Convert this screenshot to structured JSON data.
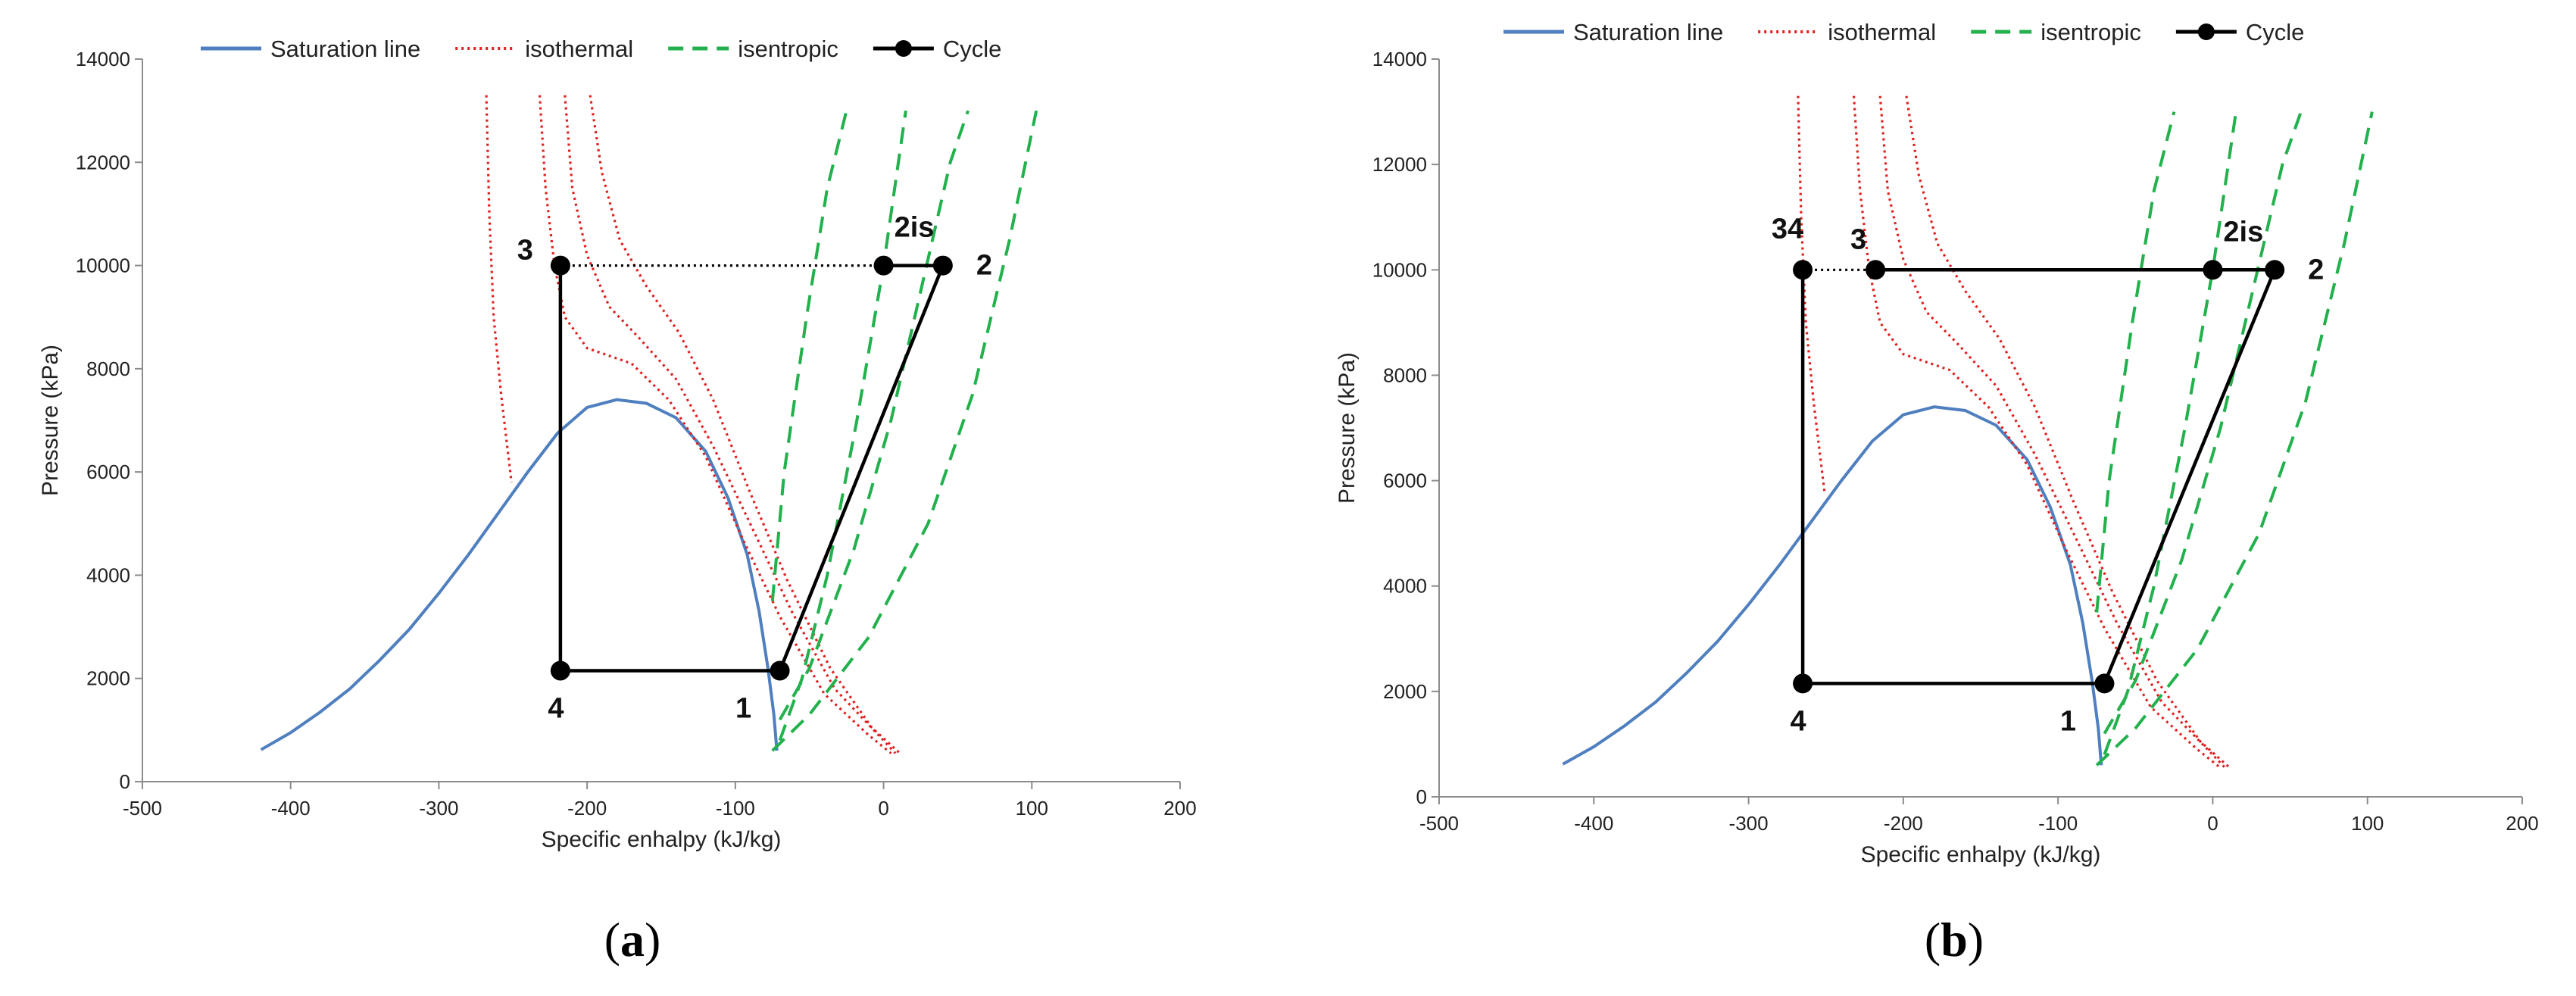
{
  "chart_data": [
    {
      "type": "line",
      "panel": "a",
      "caption_open": "(",
      "caption_letter": "a",
      "caption_close": ")",
      "xlabel": "Specific enhalpy (kJ/kg)",
      "ylabel": "Pressure (kPa)",
      "xlim": [
        -500,
        200
      ],
      "ylim": [
        0,
        14000
      ],
      "xticks": [
        -500,
        -400,
        -300,
        -200,
        -100,
        0,
        100,
        200
      ],
      "yticks": [
        0,
        2000,
        4000,
        6000,
        8000,
        10000,
        12000,
        14000
      ],
      "grid": false,
      "legend_position": "top",
      "legend": [
        {
          "name": "Saturation line",
          "style": "solid",
          "color": "#4f7fbf"
        },
        {
          "name": "isothermal",
          "style": "dotted",
          "color": "#e02020"
        },
        {
          "name": "isentropic",
          "style": "dashed",
          "color": "#22b14c"
        },
        {
          "name": "Cycle",
          "style": "marker",
          "color": "#000000"
        }
      ],
      "saturation": [
        [
          -420,
          620
        ],
        [
          -400,
          950
        ],
        [
          -380,
          1350
        ],
        [
          -360,
          1800
        ],
        [
          -340,
          2350
        ],
        [
          -320,
          2950
        ],
        [
          -300,
          3650
        ],
        [
          -280,
          4400
        ],
        [
          -260,
          5200
        ],
        [
          -240,
          6000
        ],
        [
          -220,
          6750
        ],
        [
          -200,
          7250
        ],
        [
          -180,
          7400
        ],
        [
          -160,
          7330
        ],
        [
          -140,
          7050
        ],
        [
          -120,
          6400
        ],
        [
          -105,
          5500
        ],
        [
          -92,
          4400
        ],
        [
          -84,
          3300
        ],
        [
          -78,
          2200
        ],
        [
          -74,
          1300
        ],
        [
          -72,
          600
        ]
      ],
      "isotherms": [
        [
          [
            -268,
            13300
          ],
          [
            -266,
            11000
          ],
          [
            -263,
            9000
          ],
          [
            -258,
            7500
          ],
          [
            -251,
            5800
          ]
        ],
        [
          [
            -232,
            13300
          ],
          [
            -228,
            11500
          ],
          [
            -222,
            10000
          ],
          [
            -215,
            9000
          ],
          [
            -200,
            8400
          ],
          [
            -170,
            8100
          ],
          [
            -145,
            7400
          ],
          [
            -120,
            6300
          ],
          [
            -95,
            4700
          ],
          [
            -70,
            3200
          ],
          [
            -40,
            1700
          ],
          [
            -10,
            900
          ],
          [
            5,
            550
          ]
        ],
        [
          [
            -215,
            13300
          ],
          [
            -210,
            11500
          ],
          [
            -200,
            10200
          ],
          [
            -185,
            9200
          ],
          [
            -165,
            8600
          ],
          [
            -140,
            7800
          ],
          [
            -115,
            6500
          ],
          [
            -90,
            5000
          ],
          [
            -62,
            3300
          ],
          [
            -33,
            1800
          ],
          [
            -5,
            950
          ],
          [
            8,
            550
          ]
        ],
        [
          [
            -198,
            13300
          ],
          [
            -190,
            11800
          ],
          [
            -178,
            10500
          ],
          [
            -160,
            9600
          ],
          [
            -138,
            8700
          ],
          [
            -115,
            7400
          ],
          [
            -90,
            5600
          ],
          [
            -65,
            3900
          ],
          [
            -36,
            2200
          ],
          [
            -8,
            1050
          ],
          [
            11,
            550
          ]
        ]
      ],
      "isentropes": [
        [
          [
            -75,
            3500
          ],
          [
            -67,
            6000
          ],
          [
            -52,
            9000
          ],
          [
            -38,
            11500
          ],
          [
            -25,
            13000
          ]
        ],
        [
          [
            -70,
            800
          ],
          [
            -55,
            2000
          ],
          [
            -38,
            4000
          ],
          [
            -18,
            7000
          ],
          [
            0,
            10000
          ],
          [
            10,
            12000
          ],
          [
            15,
            13000
          ]
        ],
        [
          [
            -70,
            1200
          ],
          [
            -50,
            2200
          ],
          [
            -20,
            4500
          ],
          [
            5,
            7000
          ],
          [
            25,
            9500
          ],
          [
            45,
            12000
          ],
          [
            57,
            13000
          ]
        ],
        [
          [
            -75,
            600
          ],
          [
            -50,
            1300
          ],
          [
            -10,
            2800
          ],
          [
            30,
            5000
          ],
          [
            60,
            7500
          ],
          [
            85,
            10500
          ],
          [
            103,
            13000
          ]
        ]
      ],
      "cycle_solid": [
        [
          -70,
          2150
        ],
        [
          -218,
          2150
        ],
        [
          -218,
          10000
        ]
      ],
      "cycle_solid_2": [
        [
          0,
          10000
        ],
        [
          40,
          10000
        ],
        [
          -70,
          2150
        ]
      ],
      "cycle_dotted": [
        [
          -218,
          10000
        ],
        [
          0,
          10000
        ]
      ],
      "points": [
        {
          "label": "1",
          "h": -70,
          "p": 2150,
          "anchor": "bl"
        },
        {
          "label": "2",
          "h": 40,
          "p": 10000,
          "anchor": "r"
        },
        {
          "label": "2is",
          "h": 0,
          "p": 10000,
          "anchor": "tr"
        },
        {
          "label": "3",
          "h": -218,
          "p": 10000,
          "anchor": "l"
        },
        {
          "label": "4",
          "h": -218,
          "p": 2150,
          "anchor": "b"
        }
      ]
    },
    {
      "type": "line",
      "panel": "b",
      "caption_open": "(",
      "caption_letter": "b",
      "caption_close": ")",
      "xlabel": "Specific enhalpy (kJ/kg)",
      "ylabel": "Pressure (kPa)",
      "xlim": [
        -500,
        200
      ],
      "ylim": [
        0,
        14000
      ],
      "xticks": [
        -500,
        -400,
        -300,
        -200,
        -100,
        0,
        100,
        200
      ],
      "yticks": [
        0,
        2000,
        4000,
        6000,
        8000,
        10000,
        12000,
        14000
      ],
      "grid": false,
      "legend_position": "top",
      "legend": [
        {
          "name": "Saturation line",
          "style": "solid",
          "color": "#4f7fbf"
        },
        {
          "name": "isothermal",
          "style": "dotted",
          "color": "#e02020"
        },
        {
          "name": "isentropic",
          "style": "dashed",
          "color": "#22b14c"
        },
        {
          "name": "Cycle",
          "style": "marker",
          "color": "#000000"
        }
      ],
      "saturation": [
        [
          -420,
          620
        ],
        [
          -400,
          950
        ],
        [
          -380,
          1350
        ],
        [
          -360,
          1800
        ],
        [
          -340,
          2350
        ],
        [
          -320,
          2950
        ],
        [
          -300,
          3650
        ],
        [
          -280,
          4400
        ],
        [
          -260,
          5200
        ],
        [
          -240,
          6000
        ],
        [
          -220,
          6750
        ],
        [
          -200,
          7250
        ],
        [
          -180,
          7400
        ],
        [
          -160,
          7330
        ],
        [
          -140,
          7050
        ],
        [
          -120,
          6400
        ],
        [
          -105,
          5500
        ],
        [
          -92,
          4400
        ],
        [
          -84,
          3300
        ],
        [
          -78,
          2200
        ],
        [
          -74,
          1300
        ],
        [
          -72,
          600
        ]
      ],
      "isotherms": [
        [
          [
            -268,
            13300
          ],
          [
            -266,
            11000
          ],
          [
            -263,
            9000
          ],
          [
            -258,
            7500
          ],
          [
            -251,
            5800
          ]
        ],
        [
          [
            -232,
            13300
          ],
          [
            -228,
            11500
          ],
          [
            -222,
            10000
          ],
          [
            -215,
            9000
          ],
          [
            -200,
            8400
          ],
          [
            -170,
            8100
          ],
          [
            -145,
            7400
          ],
          [
            -120,
            6300
          ],
          [
            -95,
            4700
          ],
          [
            -70,
            3200
          ],
          [
            -40,
            1700
          ],
          [
            -10,
            900
          ],
          [
            5,
            550
          ]
        ],
        [
          [
            -215,
            13300
          ],
          [
            -210,
            11500
          ],
          [
            -200,
            10200
          ],
          [
            -185,
            9200
          ],
          [
            -165,
            8600
          ],
          [
            -140,
            7800
          ],
          [
            -115,
            6500
          ],
          [
            -90,
            5000
          ],
          [
            -62,
            3300
          ],
          [
            -33,
            1800
          ],
          [
            -5,
            950
          ],
          [
            8,
            550
          ]
        ],
        [
          [
            -198,
            13300
          ],
          [
            -190,
            11800
          ],
          [
            -178,
            10500
          ],
          [
            -160,
            9600
          ],
          [
            -138,
            8700
          ],
          [
            -115,
            7400
          ],
          [
            -90,
            5600
          ],
          [
            -65,
            3900
          ],
          [
            -36,
            2200
          ],
          [
            -8,
            1050
          ],
          [
            11,
            550
          ]
        ]
      ],
      "isentropes": [
        [
          [
            -75,
            3500
          ],
          [
            -67,
            6000
          ],
          [
            -52,
            9000
          ],
          [
            -38,
            11500
          ],
          [
            -25,
            13000
          ]
        ],
        [
          [
            -70,
            800
          ],
          [
            -55,
            2000
          ],
          [
            -38,
            4000
          ],
          [
            -18,
            7000
          ],
          [
            0,
            10000
          ],
          [
            10,
            12000
          ],
          [
            15,
            13000
          ]
        ],
        [
          [
            -70,
            1200
          ],
          [
            -50,
            2200
          ],
          [
            -20,
            4500
          ],
          [
            5,
            7000
          ],
          [
            25,
            9500
          ],
          [
            45,
            12000
          ],
          [
            57,
            13000
          ]
        ],
        [
          [
            -75,
            600
          ],
          [
            -50,
            1300
          ],
          [
            -10,
            2800
          ],
          [
            30,
            5000
          ],
          [
            60,
            7500
          ],
          [
            85,
            10500
          ],
          [
            103,
            13000
          ]
        ]
      ],
      "cycle_solid": [
        [
          -70,
          2150
        ],
        [
          -265,
          2150
        ],
        [
          -265,
          10000
        ]
      ],
      "cycle_solid_2": [
        [
          -218,
          10000
        ],
        [
          40,
          10000
        ],
        [
          -70,
          2150
        ]
      ],
      "cycle_dotted": [
        [
          -265,
          10000
        ],
        [
          -218,
          10000
        ]
      ],
      "points": [
        {
          "label": "1",
          "h": -70,
          "p": 2150,
          "anchor": "bl"
        },
        {
          "label": "2",
          "h": 40,
          "p": 10000,
          "anchor": "r"
        },
        {
          "label": "2is",
          "h": 0,
          "p": 10000,
          "anchor": "tr"
        },
        {
          "label": "3",
          "h": -218,
          "p": 10000,
          "anchor": "tl"
        },
        {
          "label": "34",
          "h": -265,
          "p": 10000,
          "anchor": "tl2"
        },
        {
          "label": "4",
          "h": -265,
          "p": 2150,
          "anchor": "b"
        }
      ]
    }
  ]
}
